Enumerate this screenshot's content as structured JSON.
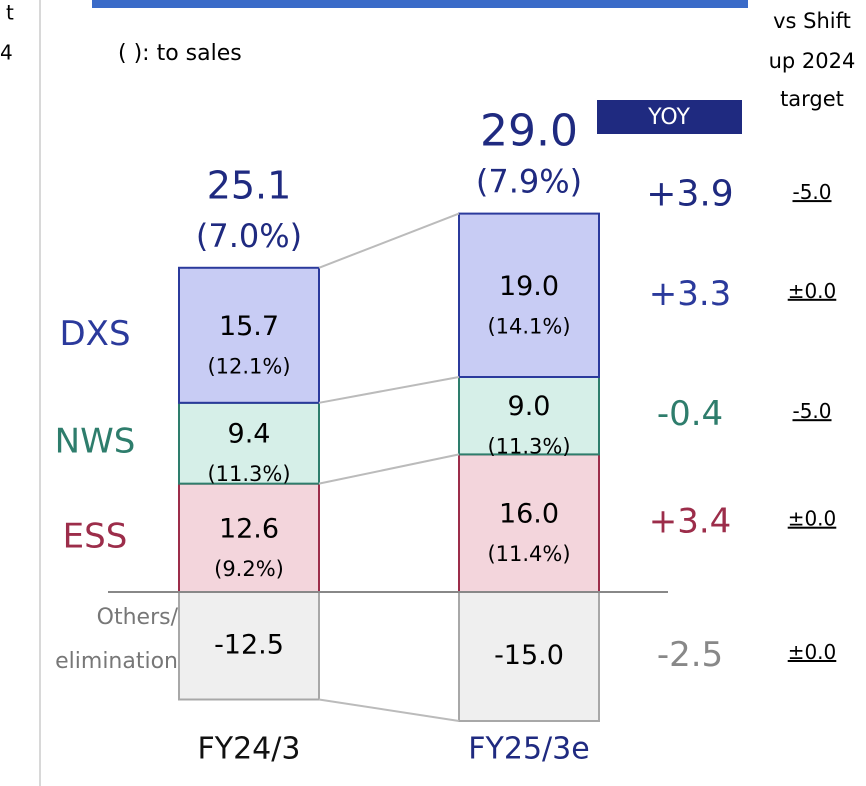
{
  "chart_data": {
    "type": "bar",
    "stacked": true,
    "note": "( ): to sales",
    "cropped_text": [
      "t",
      "4"
    ],
    "categories": [
      "FY24/3",
      "FY25/3e"
    ],
    "category_colors": [
      "#111111",
      "#1f2a80"
    ],
    "yoy_header": "YOY",
    "target_header": [
      "vs Shift",
      "up 2024",
      "target"
    ],
    "total": {
      "values": [
        25.1,
        29.0
      ],
      "value_labels": [
        "25.1",
        "29.0"
      ],
      "margins": [
        "(7.0%)",
        "(7.9%)"
      ],
      "yoy": "+3.9",
      "vs_target": "-5.0",
      "color": "#1f2a80"
    },
    "series": [
      {
        "name": "ESS",
        "color": "#f3d5dc",
        "edge": "#9c2d4a",
        "values": [
          12.6,
          16.0
        ],
        "value_labels": [
          "12.6",
          "16.0"
        ],
        "margins": [
          "(9.2%)",
          "(11.4%)"
        ],
        "yoy": "+3.4",
        "vs_target": "±0.0"
      },
      {
        "name": "NWS",
        "color": "#d6efe8",
        "edge": "#2e7d6c",
        "values": [
          9.4,
          9.0
        ],
        "value_labels": [
          "9.4",
          "9.0"
        ],
        "margins": [
          "(11.3%)",
          "(11.3%)"
        ],
        "yoy": "-0.4",
        "vs_target": "-5.0"
      },
      {
        "name": "DXS",
        "color": "#c8ccf4",
        "edge": "#2b3a9c",
        "values": [
          15.7,
          19.0
        ],
        "value_labels": [
          "15.7",
          "19.0"
        ],
        "margins": [
          "(12.1%)",
          "(14.1%)"
        ],
        "yoy": "+3.3",
        "vs_target": "±0.0"
      },
      {
        "name": "Others/ elimination",
        "color": "#efefef",
        "edge": "#a8a8a8",
        "values": [
          -12.5,
          -15.0
        ],
        "value_labels": [
          "-12.5",
          "-15.0"
        ],
        "yoy": "-2.5",
        "vs_target": "±0.0"
      }
    ]
  }
}
